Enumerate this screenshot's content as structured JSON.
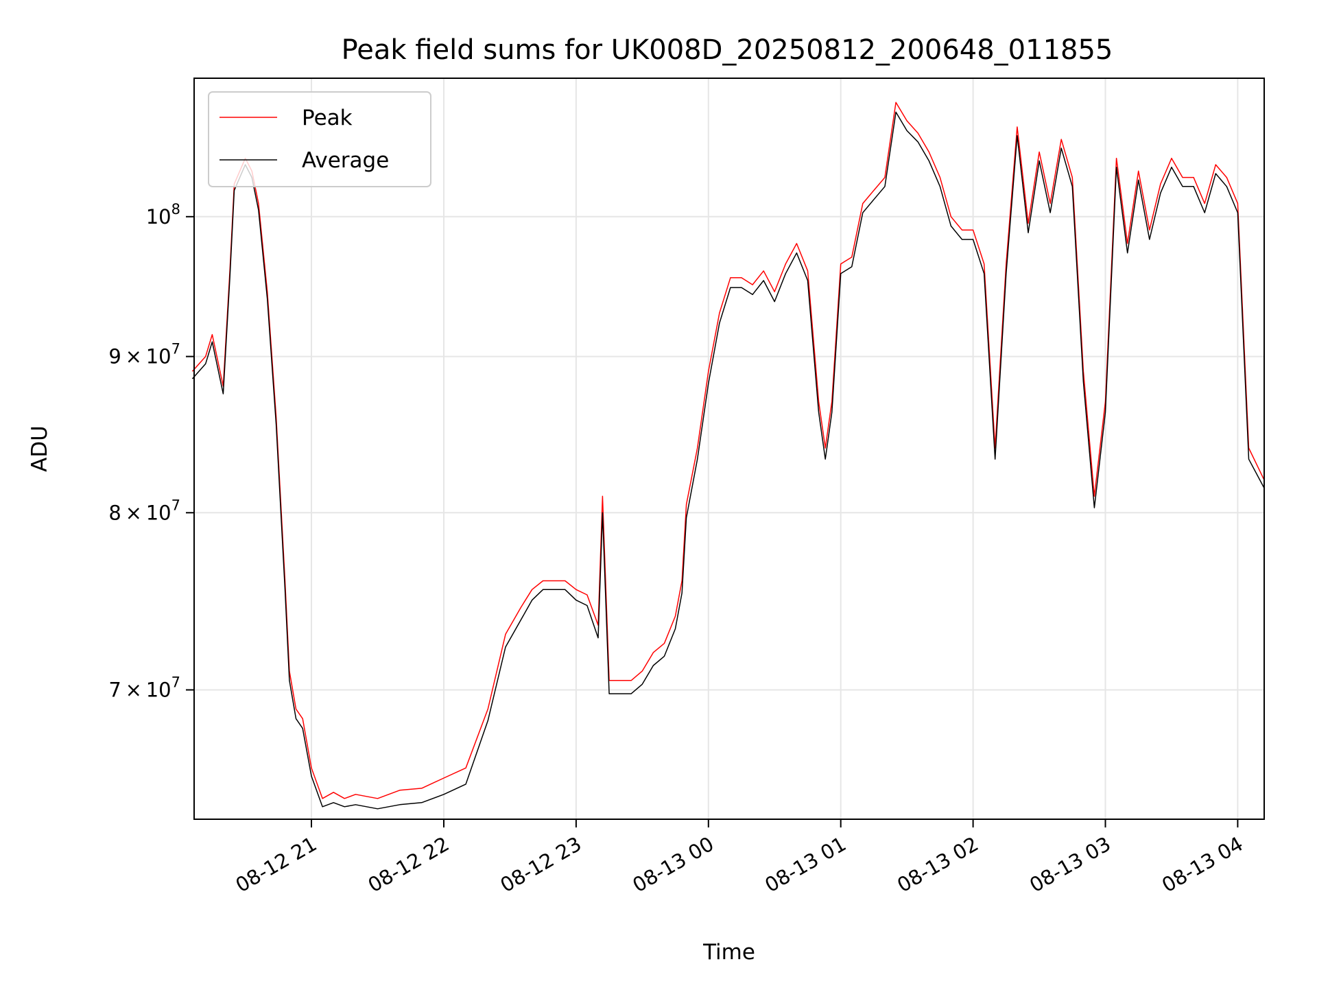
{
  "chart_data": {
    "type": "line",
    "title": "Peak field sums for UK008D_20250812_200648_011855",
    "xlabel": "Time",
    "ylabel": "ADU",
    "yscale": "log",
    "ylim": [
      63500000,
      111000000
    ],
    "xlim": [
      "2025-08-12 20:06:48",
      "2025-08-13 04:12:00"
    ],
    "grid": true,
    "legend_position": "upper-left",
    "colors": {
      "Peak": "#ff0000",
      "Average": "#000000"
    },
    "x_ticks": [
      {
        "value": "2025-08-12 21:00",
        "label": "08-12 21"
      },
      {
        "value": "2025-08-12 22:00",
        "label": "08-12 22"
      },
      {
        "value": "2025-08-12 23:00",
        "label": "08-12 23"
      },
      {
        "value": "2025-08-13 00:00",
        "label": "08-13 00"
      },
      {
        "value": "2025-08-13 01:00",
        "label": "08-13 01"
      },
      {
        "value": "2025-08-13 02:00",
        "label": "08-13 02"
      },
      {
        "value": "2025-08-13 03:00",
        "label": "08-13 03"
      },
      {
        "value": "2025-08-13 04:00",
        "label": "08-13 04"
      }
    ],
    "y_ticks": [
      {
        "value": 70000000,
        "base": "7",
        "exp": "7",
        "sci": true
      },
      {
        "value": 80000000,
        "base": "8",
        "exp": "7",
        "sci": true
      },
      {
        "value": 90000000,
        "base": "9",
        "exp": "7",
        "sci": true
      },
      {
        "value": 100000000,
        "base": "10",
        "exp": "8",
        "sci": false
      }
    ],
    "x": [
      "2025-08-12 20:06",
      "2025-08-12 20:12",
      "2025-08-12 20:15",
      "2025-08-12 20:20",
      "2025-08-12 20:23",
      "2025-08-12 20:25",
      "2025-08-12 20:30",
      "2025-08-12 20:33",
      "2025-08-12 20:36",
      "2025-08-12 20:40",
      "2025-08-12 20:44",
      "2025-08-12 20:48",
      "2025-08-12 20:50",
      "2025-08-12 20:53",
      "2025-08-12 20:56",
      "2025-08-12 21:00",
      "2025-08-12 21:05",
      "2025-08-12 21:10",
      "2025-08-12 21:15",
      "2025-08-12 21:20",
      "2025-08-12 21:30",
      "2025-08-12 21:40",
      "2025-08-12 21:50",
      "2025-08-12 22:00",
      "2025-08-12 22:10",
      "2025-08-12 22:20",
      "2025-08-12 22:28",
      "2025-08-12 22:35",
      "2025-08-12 22:40",
      "2025-08-12 22:45",
      "2025-08-12 22:50",
      "2025-08-12 22:55",
      "2025-08-12 23:00",
      "2025-08-12 23:05",
      "2025-08-12 23:10",
      "2025-08-12 23:12",
      "2025-08-12 23:15",
      "2025-08-12 23:20",
      "2025-08-12 23:25",
      "2025-08-12 23:30",
      "2025-08-12 23:35",
      "2025-08-12 23:40",
      "2025-08-12 23:45",
      "2025-08-12 23:48",
      "2025-08-12 23:50",
      "2025-08-12 23:55",
      "2025-08-13 00:00",
      "2025-08-13 00:05",
      "2025-08-13 00:10",
      "2025-08-13 00:15",
      "2025-08-13 00:20",
      "2025-08-13 00:25",
      "2025-08-13 00:30",
      "2025-08-13 00:35",
      "2025-08-13 00:40",
      "2025-08-13 00:45",
      "2025-08-13 00:50",
      "2025-08-13 00:53",
      "2025-08-13 00:56",
      "2025-08-13 01:00",
      "2025-08-13 01:05",
      "2025-08-13 01:10",
      "2025-08-13 01:15",
      "2025-08-13 01:20",
      "2025-08-13 01:25",
      "2025-08-13 01:30",
      "2025-08-13 01:35",
      "2025-08-13 01:40",
      "2025-08-13 01:45",
      "2025-08-13 01:50",
      "2025-08-13 01:55",
      "2025-08-13 02:00",
      "2025-08-13 02:05",
      "2025-08-13 02:10",
      "2025-08-13 02:15",
      "2025-08-13 02:20",
      "2025-08-13 02:25",
      "2025-08-13 02:30",
      "2025-08-13 02:35",
      "2025-08-13 02:40",
      "2025-08-13 02:45",
      "2025-08-13 02:50",
      "2025-08-13 02:55",
      "2025-08-13 03:00",
      "2025-08-13 03:05",
      "2025-08-13 03:10",
      "2025-08-13 03:15",
      "2025-08-13 03:20",
      "2025-08-13 03:25",
      "2025-08-13 03:30",
      "2025-08-13 03:35",
      "2025-08-13 03:40",
      "2025-08-13 03:45",
      "2025-08-13 03:50",
      "2025-08-13 03:55",
      "2025-08-13 04:00",
      "2025-08-13 04:05",
      "2025-08-13 04:12"
    ],
    "series": [
      {
        "name": "Peak",
        "values": [
          89000000,
          90000000,
          91500000,
          88000000,
          96000000,
          102500000,
          104500000,
          103500000,
          101000000,
          94500000,
          86000000,
          76000000,
          71000000,
          69000000,
          68500000,
          66000000,
          64500000,
          64800000,
          64500000,
          64700000,
          64500000,
          64900000,
          65000000,
          65500000,
          66000000,
          69000000,
          73000000,
          74500000,
          75500000,
          76000000,
          76000000,
          76000000,
          75500000,
          75200000,
          73500000,
          81000000,
          70500000,
          70500000,
          70500000,
          71000000,
          72000000,
          72500000,
          74000000,
          76000000,
          80500000,
          84000000,
          89000000,
          93000000,
          95500000,
          95500000,
          95000000,
          96000000,
          94500000,
          96500000,
          98000000,
          96000000,
          87000000,
          84000000,
          87000000,
          96500000,
          97000000,
          101000000,
          102000000,
          103000000,
          109000000,
          107500000,
          106500000,
          105000000,
          103000000,
          100000000,
          99000000,
          99000000,
          96500000,
          84000000,
          96500000,
          107000000,
          99500000,
          105000000,
          101000000,
          106000000,
          103000000,
          89000000,
          81000000,
          87000000,
          104500000,
          98000000,
          103500000,
          99000000,
          102500000,
          104500000,
          103000000,
          103000000,
          101000000,
          104000000,
          103000000,
          101000000,
          84000000,
          82000000
        ]
      },
      {
        "name": "Average",
        "values": [
          88500000,
          89500000,
          91000000,
          87500000,
          95500000,
          102000000,
          104000000,
          103000000,
          100500000,
          94000000,
          85500000,
          75500000,
          70500000,
          68500000,
          68000000,
          65600000,
          64100000,
          64300000,
          64100000,
          64200000,
          64000000,
          64200000,
          64300000,
          64700000,
          65200000,
          68400000,
          72300000,
          73800000,
          74900000,
          75500000,
          75500000,
          75500000,
          74900000,
          74600000,
          72800000,
          80000000,
          69800000,
          69800000,
          69800000,
          70300000,
          71300000,
          71800000,
          73300000,
          75300000,
          79700000,
          83300000,
          88200000,
          92300000,
          94800000,
          94800000,
          94300000,
          95300000,
          93800000,
          95800000,
          97300000,
          95300000,
          86300000,
          83300000,
          86300000,
          95800000,
          96300000,
          100300000,
          101300000,
          102300000,
          108200000,
          106700000,
          105800000,
          104300000,
          102300000,
          99300000,
          98300000,
          98300000,
          95800000,
          83300000,
          95800000,
          106300000,
          98800000,
          104300000,
          100300000,
          105300000,
          102300000,
          88300000,
          80300000,
          86300000,
          103800000,
          97300000,
          102800000,
          98300000,
          101800000,
          103800000,
          102300000,
          102300000,
          100300000,
          103300000,
          102300000,
          100300000,
          83300000,
          81500000
        ]
      }
    ]
  }
}
